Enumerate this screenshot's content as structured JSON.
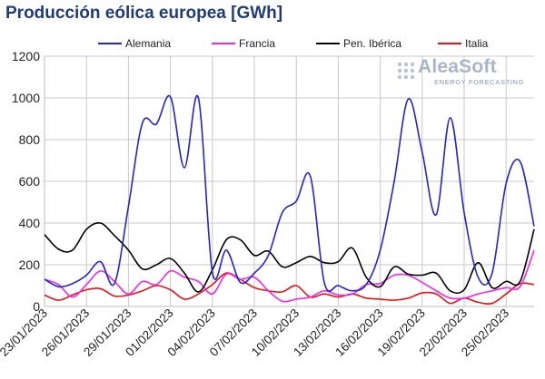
{
  "chart_data": {
    "type": "line",
    "title": "Producción eólica europea [GWh]",
    "x": [
      "23/01/2023",
      "24/01/2023",
      "25/01/2023",
      "26/01/2023",
      "27/01/2023",
      "28/01/2023",
      "29/01/2023",
      "30/01/2023",
      "31/01/2023",
      "01/02/2023",
      "02/02/2023",
      "03/02/2023",
      "04/02/2023",
      "05/02/2023",
      "06/02/2023",
      "07/02/2023",
      "08/02/2023",
      "09/02/2023",
      "10/02/2023",
      "11/02/2023",
      "12/02/2023",
      "13/02/2023",
      "14/02/2023",
      "15/02/2023",
      "16/02/2023",
      "17/02/2023",
      "18/02/2023",
      "19/02/2023",
      "20/02/2023",
      "21/02/2023",
      "22/02/2023",
      "23/02/2023",
      "24/02/2023",
      "25/02/2023",
      "26/02/2023",
      "27/02/2023"
    ],
    "x_tick_labels": [
      "23/01/2023",
      "26/01/2023",
      "29/01/2023",
      "01/02/2023",
      "04/02/2023",
      "07/02/2023",
      "10/02/2023",
      "13/02/2023",
      "16/02/2023",
      "19/02/2023",
      "22/02/2023",
      "25/02/2023"
    ],
    "ylim": [
      0,
      1200
    ],
    "y_ticks": [
      0,
      200,
      400,
      600,
      800,
      1000,
      1200
    ],
    "grid": true,
    "legend_position": "top",
    "series": [
      {
        "name": "Alemania",
        "color": "#2323d6",
        "values": [
          130,
          95,
          110,
          150,
          215,
          110,
          480,
          880,
          875,
          1005,
          665,
          1000,
          165,
          270,
          115,
          160,
          245,
          450,
          505,
          625,
          115,
          100,
          75,
          105,
          270,
          600,
          995,
          740,
          440,
          905,
          450,
          140,
          160,
          590,
          695,
          385
        ]
      },
      {
        "name": "Francia",
        "color": "#f026f0",
        "values": [
          130,
          105,
          45,
          105,
          170,
          120,
          60,
          120,
          105,
          170,
          140,
          120,
          60,
          155,
          130,
          140,
          75,
          25,
          35,
          45,
          75,
          55,
          60,
          105,
          110,
          150,
          150,
          115,
          75,
          40,
          40,
          60,
          75,
          90,
          95,
          270
        ]
      },
      {
        "name": "Pen. Ibérica",
        "color": "#000000",
        "values": [
          345,
          275,
          270,
          370,
          400,
          340,
          270,
          180,
          200,
          230,
          160,
          70,
          175,
          320,
          320,
          245,
          265,
          190,
          210,
          240,
          210,
          215,
          280,
          140,
          95,
          190,
          155,
          150,
          160,
          75,
          80,
          210,
          90,
          120,
          120,
          370
        ]
      },
      {
        "name": "Italia",
        "color": "#ee1111",
        "values": [
          55,
          30,
          55,
          80,
          85,
          50,
          55,
          75,
          100,
          80,
          35,
          60,
          105,
          160,
          130,
          90,
          75,
          70,
          100,
          45,
          60,
          45,
          60,
          40,
          35,
          30,
          40,
          65,
          60,
          15,
          40,
          20,
          15,
          60,
          110,
          105
        ]
      }
    ]
  },
  "logo": {
    "name": "AleaSoft",
    "subtitle": "ENERGY FORECASTING"
  }
}
